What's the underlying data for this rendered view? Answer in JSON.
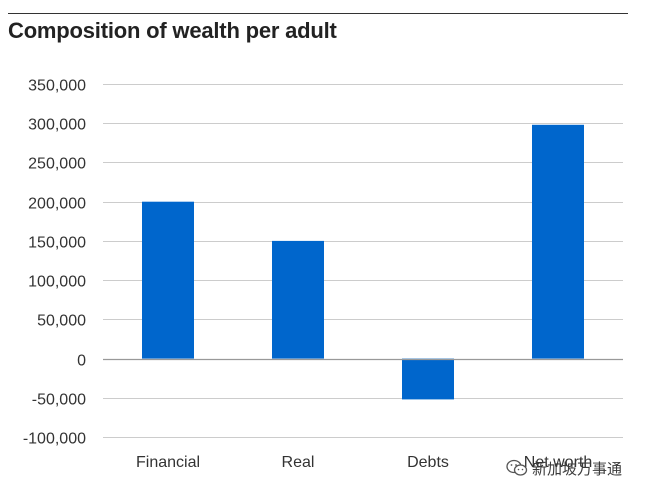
{
  "chart_data": {
    "type": "bar",
    "title": "Composition of wealth per adult",
    "categories": [
      "Financial",
      "Real",
      "Debts",
      "Net worth"
    ],
    "values": [
      200000,
      150000,
      -52000,
      298000
    ],
    "ylim": [
      -100000,
      350000
    ],
    "yticks": [
      350000,
      300000,
      250000,
      200000,
      150000,
      100000,
      50000,
      0,
      -50000,
      -100000
    ],
    "ytick_labels": [
      "350,000",
      "300,000",
      "250,000",
      "200,000",
      "150,000",
      "100,000",
      "50,000",
      "0",
      "-50,000",
      "-100,000"
    ],
    "grid": true,
    "legend": "none",
    "bar_color": "#0066CC",
    "grid_color": "#cccccc",
    "zero_line_color": "#999999"
  },
  "watermark": {
    "text": "新加坡万事通",
    "icon": "wechat-icon"
  }
}
